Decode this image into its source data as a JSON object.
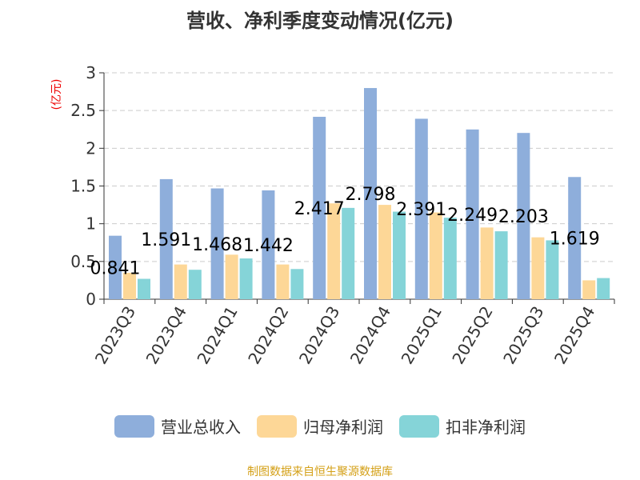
{
  "chart_data": {
    "type": "bar",
    "title": "营收、净利季度变动情况(亿元)",
    "ylabel": "(亿元)",
    "ylim": [
      0,
      3
    ],
    "yticks": [
      "0",
      "0.5",
      "1",
      "1.5",
      "2",
      "2.5",
      "3"
    ],
    "grid": true,
    "legend_position": "bottom",
    "categories": [
      "2023Q3",
      "2023Q4",
      "2024Q1",
      "2024Q2",
      "2024Q3",
      "2024Q4",
      "2025Q1",
      "2025Q2",
      "2025Q3",
      "2025Q4"
    ],
    "series": [
      {
        "name": "营业总收入",
        "color": "#8eaedb",
        "values": [
          0.841,
          1.591,
          1.468,
          1.442,
          2.417,
          2.798,
          2.391,
          2.249,
          2.203,
          1.619
        ],
        "labels": [
          "0.841",
          "1.591",
          "1.468",
          "1.442",
          "2.417",
          "2.798",
          "2.391",
          "2.249",
          "2.203",
          "1.619"
        ]
      },
      {
        "name": "归母净利润",
        "color": "#fdd797",
        "values": [
          0.35,
          0.46,
          0.59,
          0.46,
          1.27,
          1.25,
          1.15,
          0.95,
          0.82,
          0.25
        ]
      },
      {
        "name": "扣非净利润",
        "color": "#85d4d8",
        "values": [
          0.27,
          0.39,
          0.54,
          0.4,
          1.21,
          1.16,
          1.08,
          0.9,
          0.78,
          0.28
        ]
      }
    ]
  },
  "footer": "制图数据来自恒生聚源数据库"
}
